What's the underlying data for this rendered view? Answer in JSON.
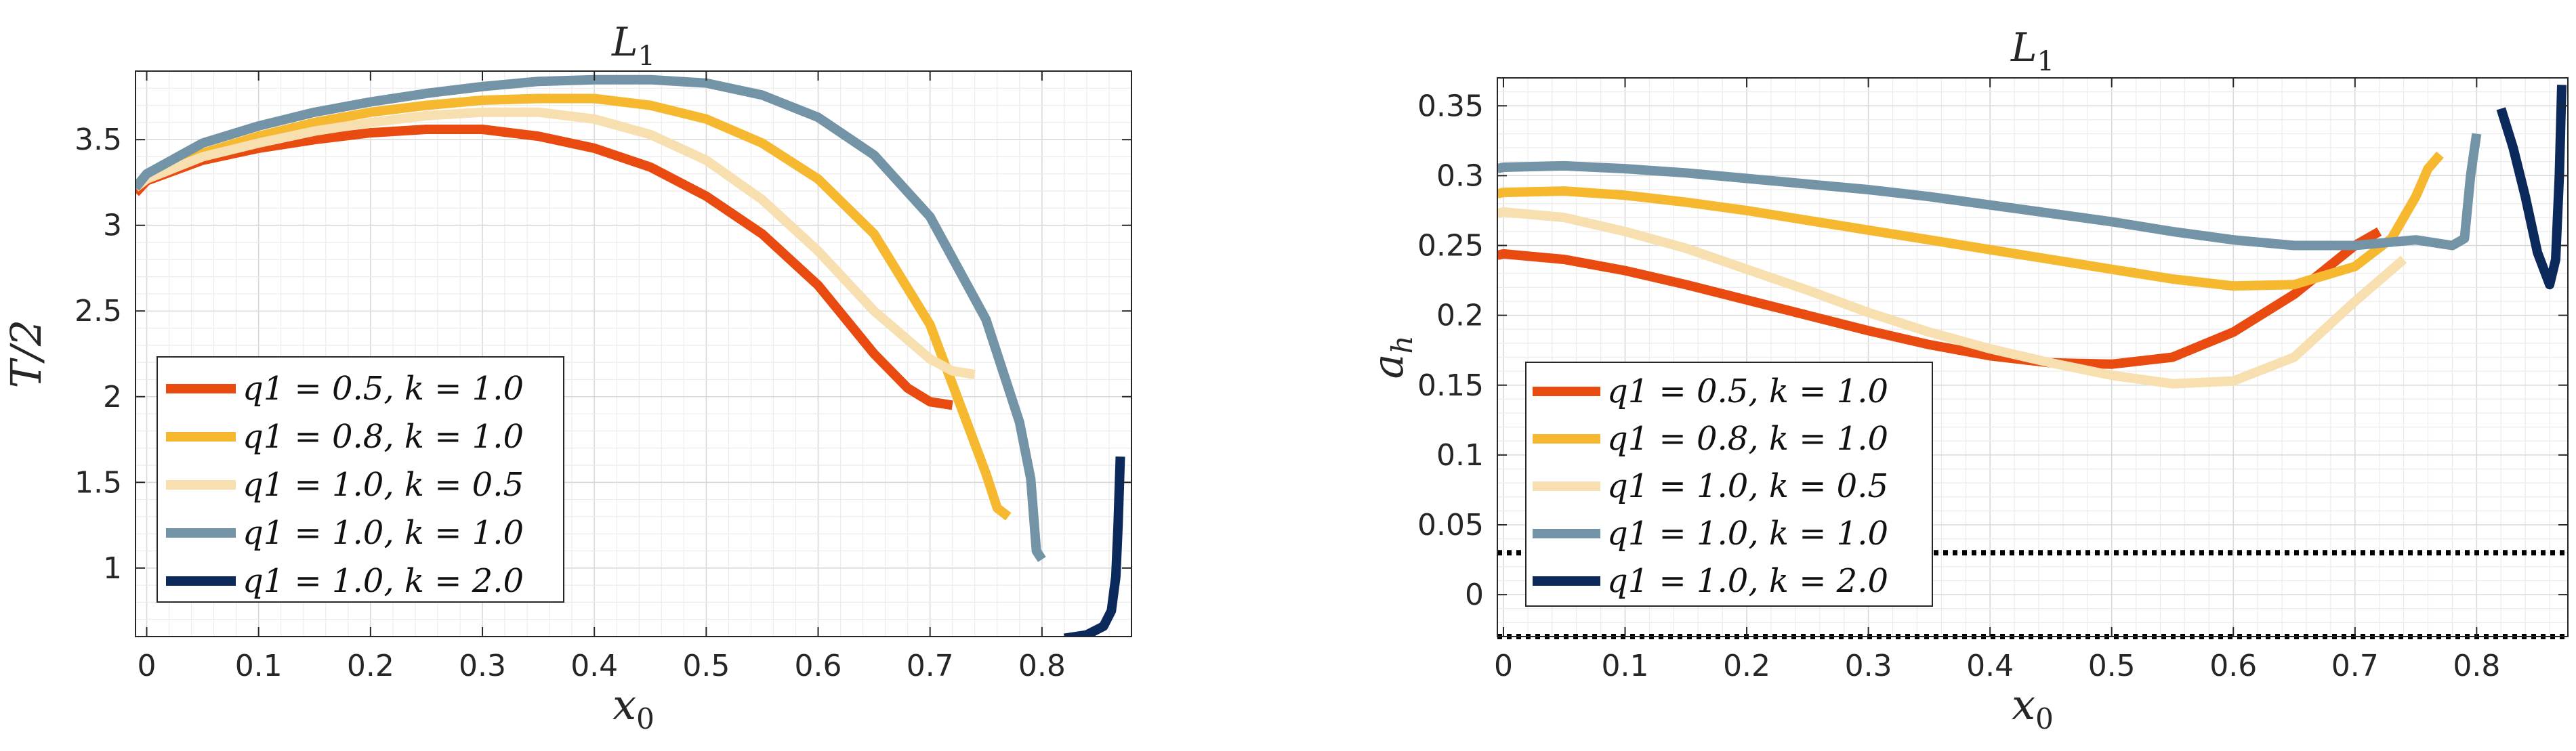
{
  "colors": {
    "orange": "#e84a10",
    "gold": "#f5b82e",
    "cream": "#f7dfb0",
    "slate": "#7393a6",
    "navy": "#0b2a5b"
  },
  "chart_data": [
    {
      "type": "line",
      "title": "L1",
      "xlabel": "x0",
      "ylabel": "T/2",
      "xlim": [
        -0.01,
        0.88
      ],
      "ylim": [
        0.6,
        3.9
      ],
      "xticks": [
        0,
        0.1,
        0.2,
        0.3,
        0.4,
        0.5,
        0.6,
        0.7,
        0.8
      ],
      "xtick_labels": [
        "0",
        "0.1",
        "0.2",
        "0.3",
        "0.4",
        "0.5",
        "0.6",
        "0.7",
        "0.8"
      ],
      "yticks": [
        1,
        1.5,
        2,
        2.5,
        3,
        3.5
      ],
      "ytick_labels": [
        "1",
        "1.5",
        "2",
        "2.5",
        "3",
        "3.5"
      ],
      "grid": true,
      "legend_position": "bottom-left",
      "series": [
        {
          "name": "q1 = 0.5, k = 1.0",
          "color": "orange",
          "x": [
            -0.01,
            0,
            0.05,
            0.1,
            0.15,
            0.2,
            0.25,
            0.3,
            0.35,
            0.4,
            0.45,
            0.5,
            0.55,
            0.6,
            0.65,
            0.68,
            0.7,
            0.72
          ],
          "y": [
            3.19,
            3.26,
            3.38,
            3.45,
            3.5,
            3.54,
            3.56,
            3.56,
            3.52,
            3.45,
            3.34,
            3.17,
            2.95,
            2.65,
            2.25,
            2.05,
            1.97,
            1.95
          ]
        },
        {
          "name": "q1 = 0.8, k = 1.0",
          "color": "gold",
          "x": [
            -0.01,
            0,
            0.05,
            0.1,
            0.15,
            0.2,
            0.25,
            0.3,
            0.35,
            0.4,
            0.45,
            0.5,
            0.55,
            0.6,
            0.65,
            0.7,
            0.73,
            0.75,
            0.76,
            0.77
          ],
          "y": [
            3.22,
            3.28,
            3.42,
            3.52,
            3.6,
            3.66,
            3.7,
            3.73,
            3.74,
            3.74,
            3.7,
            3.62,
            3.48,
            3.27,
            2.95,
            2.42,
            1.9,
            1.55,
            1.35,
            1.3
          ]
        },
        {
          "name": "q1 = 1.0, k = 0.5",
          "color": "cream",
          "x": [
            -0.01,
            0,
            0.05,
            0.1,
            0.15,
            0.2,
            0.25,
            0.3,
            0.35,
            0.4,
            0.45,
            0.5,
            0.55,
            0.6,
            0.65,
            0.7,
            0.72,
            0.74
          ],
          "y": [
            3.22,
            3.27,
            3.4,
            3.48,
            3.55,
            3.6,
            3.64,
            3.66,
            3.66,
            3.62,
            3.53,
            3.38,
            3.15,
            2.85,
            2.5,
            2.22,
            2.15,
            2.13
          ]
        },
        {
          "name": "q1 = 1.0, k = 1.0",
          "color": "slate",
          "x": [
            -0.01,
            0,
            0.05,
            0.1,
            0.15,
            0.2,
            0.25,
            0.3,
            0.35,
            0.4,
            0.45,
            0.5,
            0.55,
            0.6,
            0.65,
            0.7,
            0.75,
            0.78,
            0.79,
            0.795,
            0.8
          ],
          "y": [
            3.22,
            3.3,
            3.48,
            3.58,
            3.66,
            3.72,
            3.77,
            3.81,
            3.84,
            3.85,
            3.85,
            3.83,
            3.76,
            3.63,
            3.41,
            3.05,
            2.45,
            1.85,
            1.52,
            1.1,
            1.05
          ]
        },
        {
          "name": "q1 = 1.0, k = 2.0",
          "color": "navy",
          "x": [
            0.82,
            0.84,
            0.855,
            0.862,
            0.866,
            0.868,
            0.87
          ],
          "y": [
            0.59,
            0.61,
            0.66,
            0.75,
            0.95,
            1.25,
            1.65
          ]
        }
      ]
    },
    {
      "type": "line",
      "title": "L1",
      "xlabel": "x0",
      "ylabel": "ah",
      "xlim": [
        -0.005,
        0.875
      ],
      "ylim": [
        -0.03,
        0.37
      ],
      "xticks": [
        0,
        0.1,
        0.2,
        0.3,
        0.4,
        0.5,
        0.6,
        0.7,
        0.8
      ],
      "xtick_labels": [
        "0",
        "0.1",
        "0.2",
        "0.3",
        "0.4",
        "0.5",
        "0.6",
        "0.7",
        "0.8"
      ],
      "yticks": [
        0,
        0.05,
        0.1,
        0.15,
        0.2,
        0.25,
        0.3,
        0.35
      ],
      "ytick_labels": [
        "0",
        "0.05",
        "0.1",
        "0.15",
        "0.2",
        "0.25",
        "0.3",
        "0.35"
      ],
      "grid": true,
      "legend_position": "bottom-left",
      "reference_lines": [
        {
          "style": "dotted",
          "y": 0.03
        },
        {
          "style": "dotted",
          "y": -0.03
        }
      ],
      "series": [
        {
          "name": "q1 = 0.5, k = 1.0",
          "color": "orange",
          "x": [
            -0.005,
            0,
            0.05,
            0.1,
            0.15,
            0.2,
            0.25,
            0.3,
            0.35,
            0.4,
            0.45,
            0.5,
            0.55,
            0.6,
            0.65,
            0.7,
            0.72
          ],
          "y": [
            0.243,
            0.244,
            0.24,
            0.232,
            0.222,
            0.211,
            0.2,
            0.189,
            0.179,
            0.171,
            0.166,
            0.165,
            0.17,
            0.188,
            0.215,
            0.25,
            0.26
          ]
        },
        {
          "name": "q1 = 0.8, k = 1.0",
          "color": "gold",
          "x": [
            -0.005,
            0,
            0.05,
            0.1,
            0.15,
            0.2,
            0.25,
            0.3,
            0.35,
            0.4,
            0.45,
            0.5,
            0.55,
            0.6,
            0.65,
            0.7,
            0.73,
            0.75,
            0.76,
            0.77
          ],
          "y": [
            0.287,
            0.288,
            0.289,
            0.286,
            0.281,
            0.275,
            0.268,
            0.261,
            0.254,
            0.247,
            0.24,
            0.233,
            0.226,
            0.221,
            0.222,
            0.235,
            0.255,
            0.285,
            0.305,
            0.315
          ]
        },
        {
          "name": "q1 = 1.0, k = 0.5",
          "color": "cream",
          "x": [
            -0.005,
            0,
            0.05,
            0.1,
            0.15,
            0.2,
            0.25,
            0.3,
            0.35,
            0.4,
            0.45,
            0.5,
            0.55,
            0.6,
            0.65,
            0.7,
            0.74
          ],
          "y": [
            0.273,
            0.274,
            0.27,
            0.26,
            0.248,
            0.233,
            0.218,
            0.202,
            0.188,
            0.176,
            0.166,
            0.157,
            0.151,
            0.153,
            0.17,
            0.21,
            0.24
          ]
        },
        {
          "name": "q1 = 1.0, k = 1.0",
          "color": "slate",
          "x": [
            -0.005,
            0,
            0.05,
            0.1,
            0.15,
            0.2,
            0.25,
            0.3,
            0.35,
            0.4,
            0.45,
            0.5,
            0.55,
            0.6,
            0.65,
            0.7,
            0.75,
            0.78,
            0.79,
            0.795,
            0.8
          ],
          "y": [
            0.305,
            0.306,
            0.307,
            0.305,
            0.302,
            0.298,
            0.294,
            0.29,
            0.285,
            0.279,
            0.273,
            0.267,
            0.26,
            0.254,
            0.25,
            0.25,
            0.254,
            0.25,
            0.255,
            0.3,
            0.33
          ]
        },
        {
          "name": "q1 = 1.0, k = 2.0",
          "color": "navy",
          "x": [
            0.82,
            0.83,
            0.84,
            0.85,
            0.86,
            0.865,
            0.868,
            0.87
          ],
          "y": [
            0.348,
            0.32,
            0.285,
            0.245,
            0.222,
            0.24,
            0.3,
            0.365
          ]
        }
      ]
    }
  ],
  "legend_labels": [
    "q1 = 0.5, k = 1.0",
    "q1 = 0.8, k = 1.0",
    "q1 = 1.0, k = 0.5",
    "q1 = 1.0, k = 1.0",
    "q1 = 1.0, k = 2.0"
  ]
}
